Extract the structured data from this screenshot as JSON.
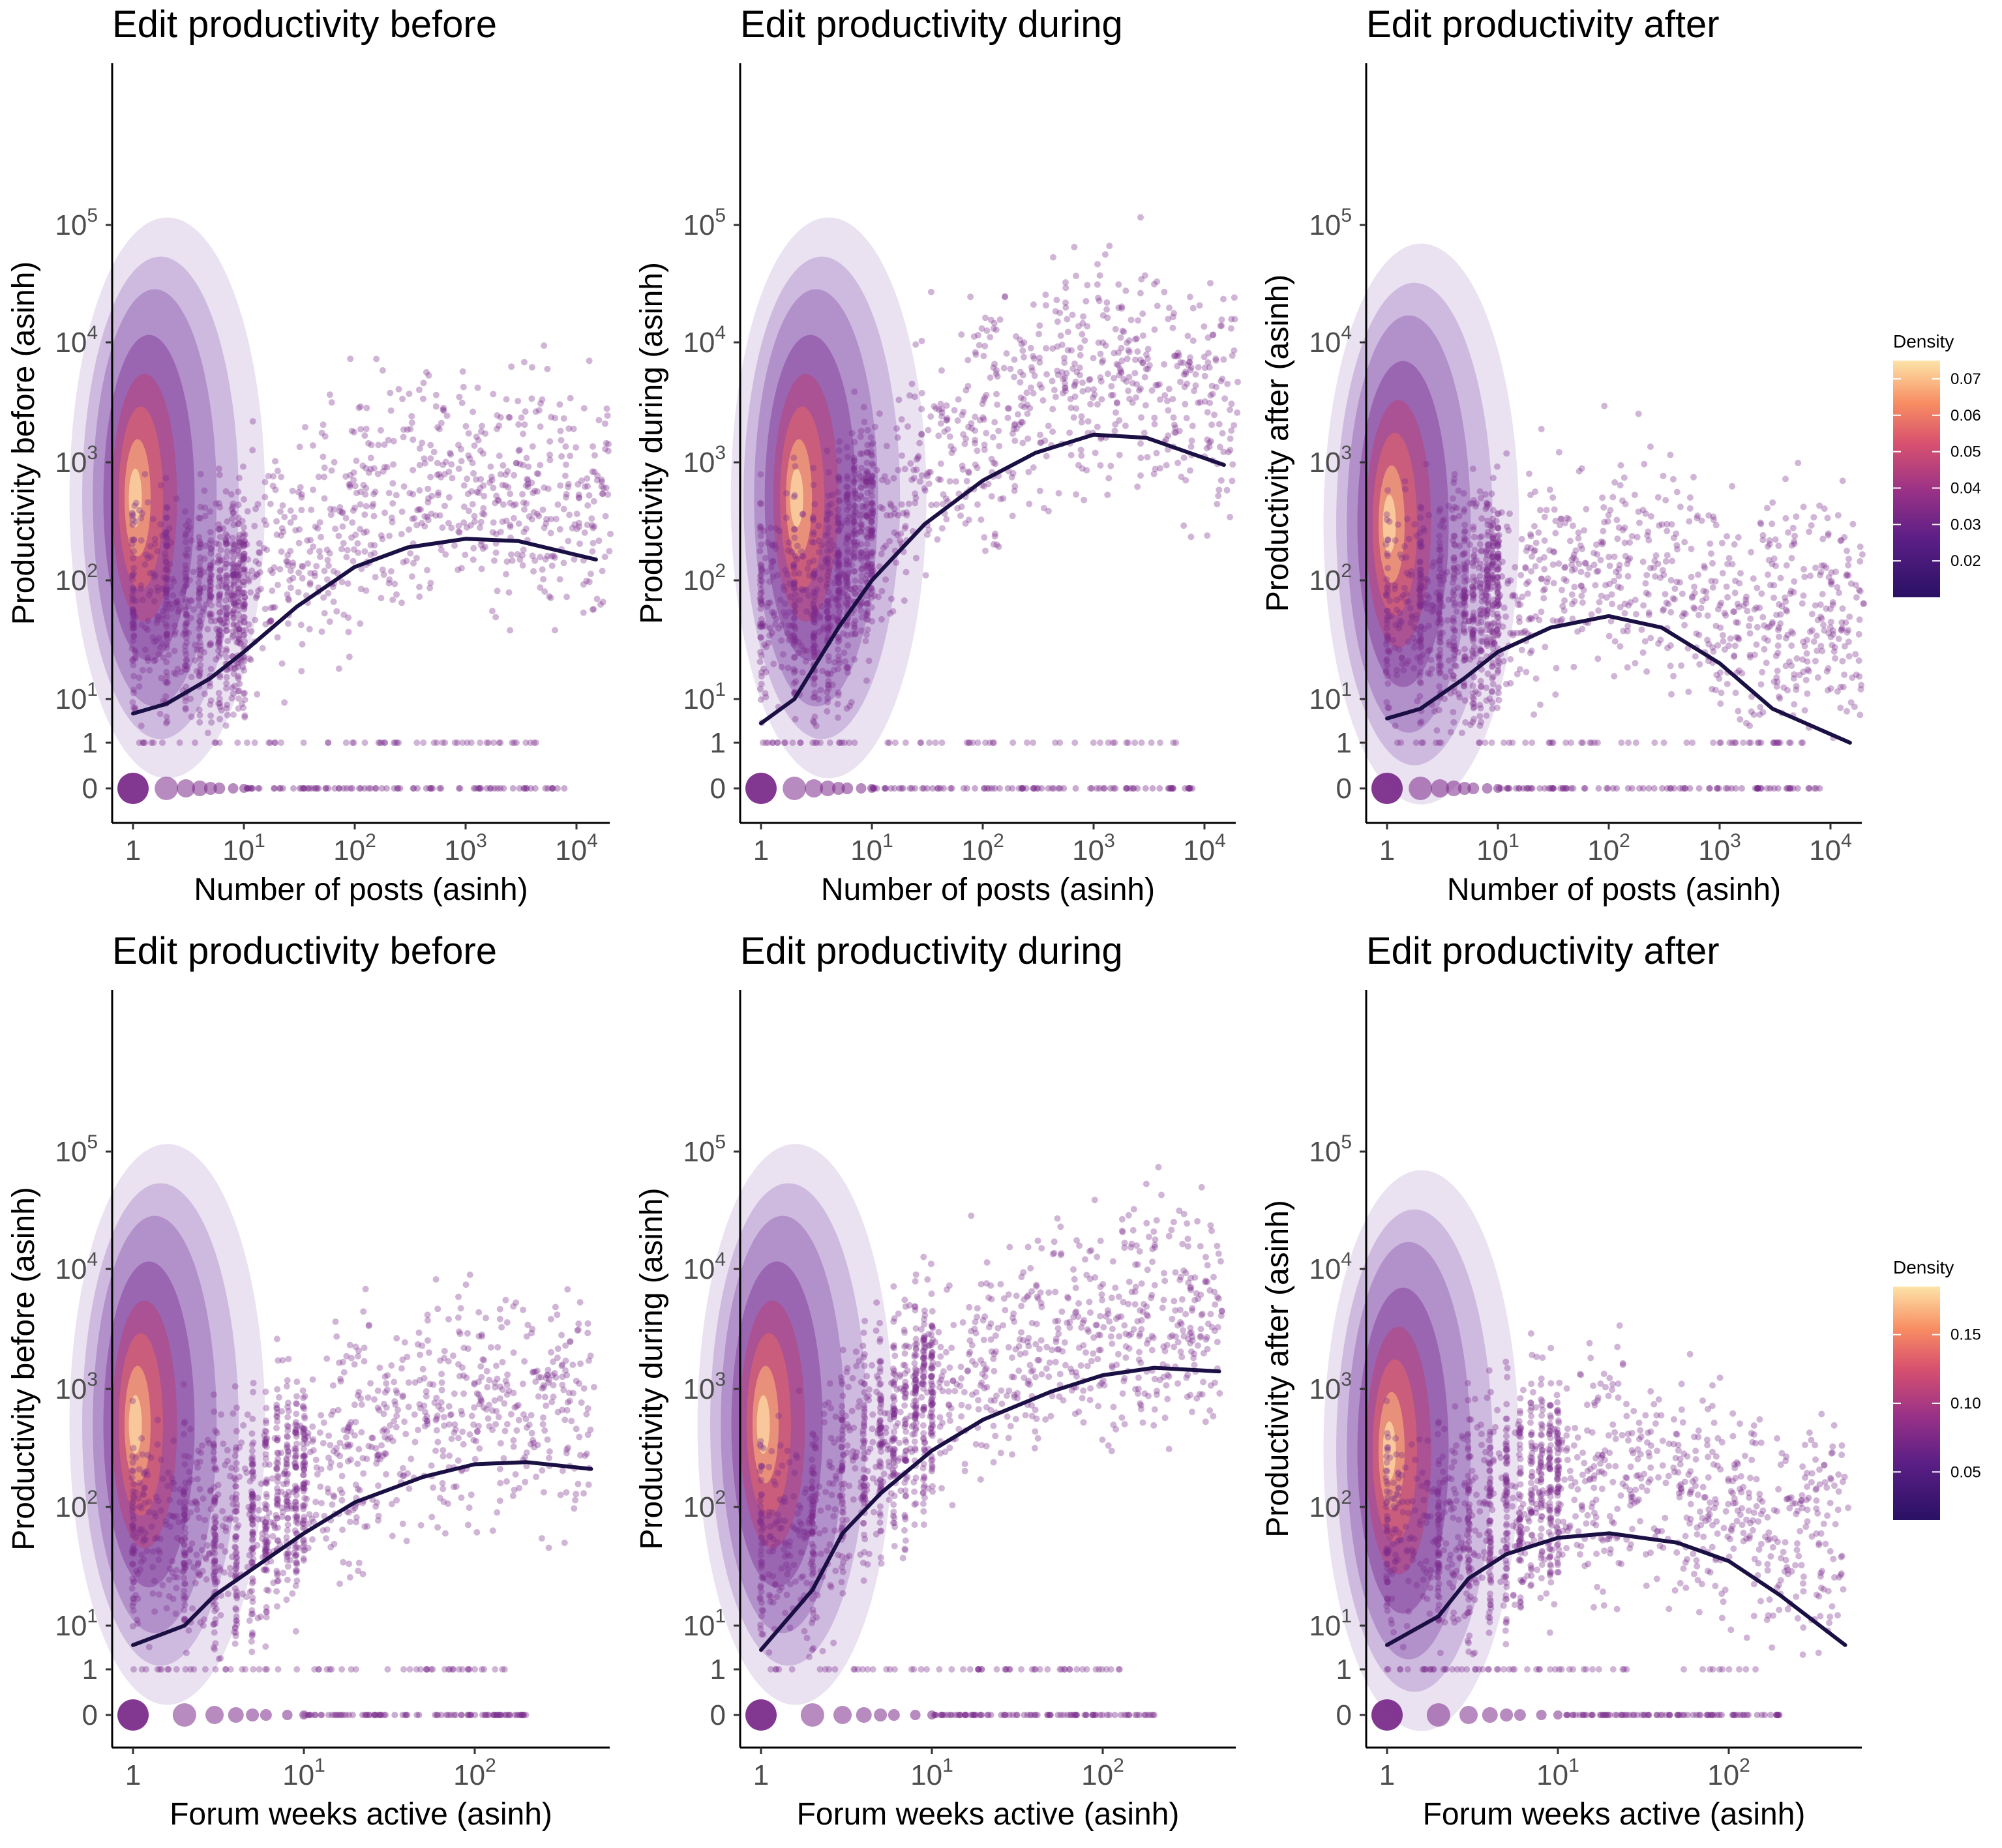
{
  "chart_data": [
    {
      "type": "scatter",
      "title": "Edit productivity before",
      "xlabel": "Number of posts (asinh)",
      "ylabel": "Productivity before (asinh)",
      "x_scale": "asinh",
      "y_scale": "asinh",
      "x_ticks": [
        "1",
        "10^1",
        "10^2",
        "10^3",
        "10^4"
      ],
      "y_ticks": [
        "0",
        "1",
        "10^1",
        "10^2",
        "10^3",
        "10^4",
        "10^5"
      ],
      "xlim": [
        1,
        20000
      ],
      "ylim": [
        0,
        600000
      ],
      "trend": {
        "x": [
          1,
          2,
          5,
          10,
          30,
          100,
          300,
          1000,
          3000,
          15000
        ],
        "y": [
          7,
          9,
          15,
          25,
          60,
          130,
          190,
          225,
          215,
          150
        ]
      },
      "density_peak": {
        "x": 1,
        "y": 500
      },
      "legend": {
        "title": "Density",
        "ticks": [
          0.02,
          0.03,
          0.04,
          0.05,
          0.06,
          0.07
        ],
        "range": [
          0.01,
          0.075
        ],
        "position": "right"
      }
    },
    {
      "type": "scatter",
      "title": "Edit productivity during",
      "xlabel": "Number of posts (asinh)",
      "ylabel": "Productivity during (asinh)",
      "x_scale": "asinh",
      "y_scale": "asinh",
      "x_ticks": [
        "1",
        "10^1",
        "10^2",
        "10^3",
        "10^4"
      ],
      "y_ticks": [
        "0",
        "1",
        "10^1",
        "10^2",
        "10^3",
        "10^4",
        "10^5"
      ],
      "xlim": [
        1,
        20000
      ],
      "ylim": [
        0,
        600000
      ],
      "trend": {
        "x": [
          1,
          2,
          5,
          10,
          30,
          100,
          300,
          1000,
          3000,
          15000
        ],
        "y": [
          5,
          10,
          40,
          100,
          300,
          700,
          1200,
          1700,
          1600,
          950
        ]
      },
      "density_peak": {
        "x": 2,
        "y": 500
      }
    },
    {
      "type": "scatter",
      "title": "Edit productivity after",
      "xlabel": "Number of posts (asinh)",
      "ylabel": "Productivity after (asinh)",
      "x_scale": "asinh",
      "y_scale": "asinh",
      "x_ticks": [
        "1",
        "10^1",
        "10^2",
        "10^3",
        "10^4"
      ],
      "y_ticks": [
        "0",
        "1",
        "10^1",
        "10^2",
        "10^3",
        "10^4",
        "10^5"
      ],
      "xlim": [
        1,
        20000
      ],
      "ylim": [
        0,
        600000
      ],
      "trend": {
        "x": [
          1,
          2,
          5,
          10,
          30,
          100,
          300,
          1000,
          3000,
          15000
        ],
        "y": [
          6,
          8,
          15,
          25,
          40,
          50,
          40,
          20,
          8,
          1
        ]
      },
      "density_peak": {
        "x": 1,
        "y": 300
      }
    },
    {
      "type": "scatter",
      "title": "Edit productivity before",
      "xlabel": "Forum weeks active (asinh)",
      "ylabel": "Productivity before (asinh)",
      "x_scale": "asinh",
      "y_scale": "asinh",
      "x_ticks": [
        "1",
        "10^1",
        "10^2"
      ],
      "y_ticks": [
        "0",
        "1",
        "10^1",
        "10^2",
        "10^3",
        "10^4",
        "10^5"
      ],
      "xlim": [
        1,
        500
      ],
      "ylim": [
        0,
        600000
      ],
      "trend": {
        "x": [
          1,
          2,
          3,
          5,
          10,
          20,
          50,
          100,
          200,
          480
        ],
        "y": [
          6,
          10,
          18,
          30,
          60,
          110,
          180,
          230,
          240,
          210
        ]
      },
      "density_peak": {
        "x": 1,
        "y": 500
      },
      "legend": {
        "title": "Density",
        "ticks": [
          0.05,
          0.1,
          0.15
        ],
        "range": [
          0.015,
          0.185
        ],
        "position": "right"
      }
    },
    {
      "type": "scatter",
      "title": "Edit productivity during",
      "xlabel": "Forum weeks active (asinh)",
      "ylabel": "Productivity during (asinh)",
      "x_scale": "asinh",
      "y_scale": "asinh",
      "x_ticks": [
        "1",
        "10^1",
        "10^2"
      ],
      "y_ticks": [
        "0",
        "1",
        "10^1",
        "10^2",
        "10^3",
        "10^4",
        "10^5"
      ],
      "xlim": [
        1,
        500
      ],
      "ylim": [
        0,
        600000
      ],
      "trend": {
        "x": [
          1,
          2,
          3,
          5,
          10,
          20,
          50,
          100,
          200,
          480
        ],
        "y": [
          5,
          20,
          60,
          130,
          300,
          550,
          950,
          1300,
          1500,
          1400
        ]
      },
      "density_peak": {
        "x": 1,
        "y": 500
      }
    },
    {
      "type": "scatter",
      "title": "Edit productivity after",
      "xlabel": "Forum weeks active (asinh)",
      "ylabel": "Productivity after (asinh)",
      "x_scale": "asinh",
      "y_scale": "asinh",
      "x_ticks": [
        "1",
        "10^1",
        "10^2"
      ],
      "y_ticks": [
        "0",
        "1",
        "10^1",
        "10^2",
        "10^3",
        "10^4",
        "10^5"
      ],
      "xlim": [
        1,
        500
      ],
      "ylim": [
        0,
        600000
      ],
      "trend": {
        "x": [
          1,
          2,
          3,
          5,
          10,
          20,
          50,
          100,
          200,
          480
        ],
        "y": [
          6,
          12,
          25,
          40,
          55,
          60,
          50,
          35,
          18,
          6
        ]
      },
      "density_peak": {
        "x": 1,
        "y": 300
      }
    }
  ],
  "colors": {
    "points": "#7b2c8b",
    "trend": "#1b1044",
    "density_low": "#2c115f",
    "density_mid": "#b73779",
    "density_high": "#fcfdbf"
  }
}
